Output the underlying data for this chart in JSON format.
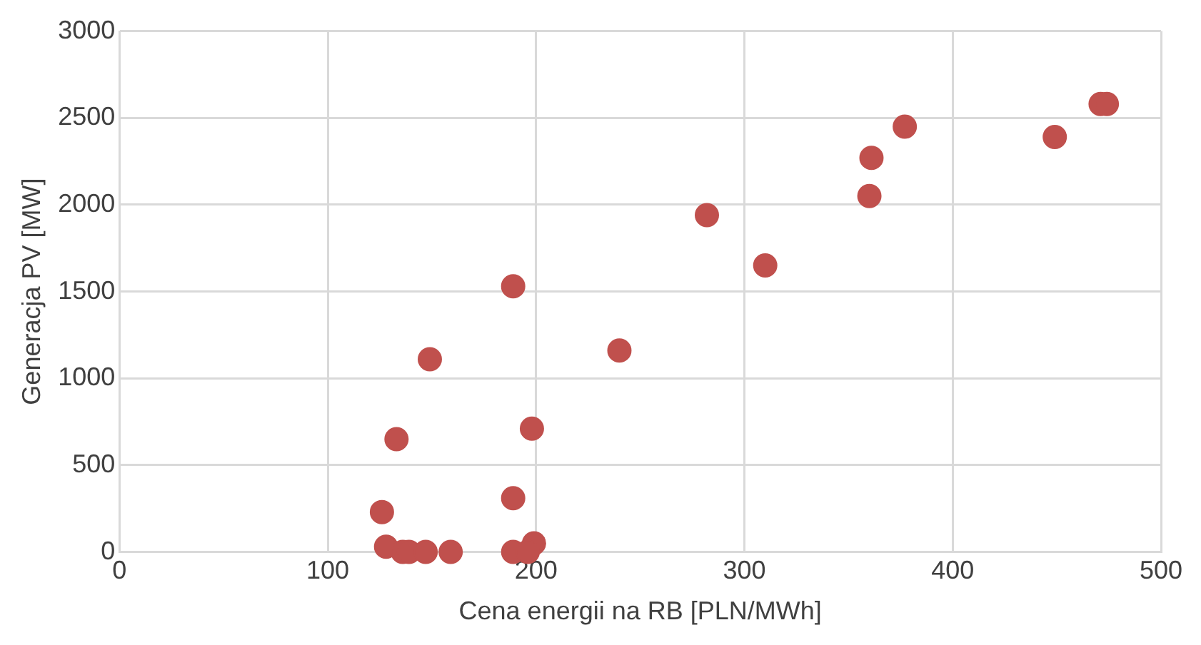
{
  "chart_data": {
    "type": "scatter",
    "xlabel": "Cena energii na RB [PLN/MWh]",
    "ylabel": "Generacja PV [MW]",
    "series": [
      {
        "color": "#c0504d",
        "x": [
          126,
          128,
          136,
          139,
          147,
          159,
          133,
          149,
          189,
          189,
          189,
          199,
          196,
          198,
          240,
          282,
          310,
          360,
          361,
          377,
          449,
          471,
          474
        ],
        "values": [
          230,
          30,
          0,
          0,
          0,
          0,
          650,
          1110,
          1530,
          310,
          0,
          50,
          0,
          710,
          1160,
          1940,
          1650,
          2050,
          2270,
          2450,
          2390,
          2580,
          2580
        ]
      }
    ],
    "xlim": [
      0,
      500
    ],
    "xticks": [
      0,
      100,
      200,
      300,
      400,
      500
    ],
    "ylim": [
      0,
      3000
    ],
    "yticks": [
      0,
      500,
      1000,
      1500,
      2000,
      2500,
      3000
    ],
    "grid": true,
    "legend": false,
    "marker": "circle"
  }
}
